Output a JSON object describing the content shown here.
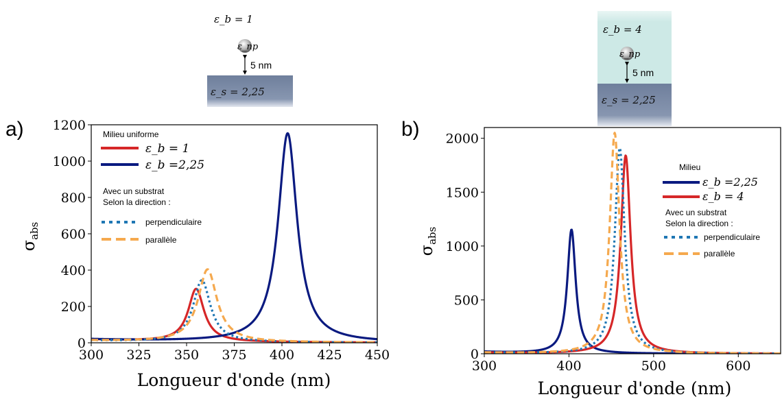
{
  "colors": {
    "red": "#d62728",
    "navy": "#0a1a80",
    "blue_dotted": "#1f77b4",
    "orange_dashed": "#f5a94e",
    "substrate": "#6f7f9c",
    "medium_b": "#cde9e6"
  },
  "chart_data": [
    {
      "panel_label": "a)",
      "type": "line",
      "xlabel": "Longueur d'onde (nm)",
      "ylabel": "σ",
      "ylabel_sub": "abs",
      "xlim": [
        300,
        450
      ],
      "ylim": [
        0,
        1200
      ],
      "xticks": [
        "300",
        "325",
        "350",
        "375",
        "400",
        "425",
        "450"
      ],
      "yticks": [
        "0",
        "200",
        "400",
        "600",
        "800",
        "1000",
        "1200"
      ],
      "legend": {
        "heading1": "Milieu uniforme",
        "entries": [
          "ε_b = 1",
          "ε_b =2,25"
        ],
        "heading2": "Avec un substrat",
        "heading3": "Selon la direction :",
        "entries2": [
          "perpendiculaire",
          "parallèle"
        ]
      },
      "series": [
        {
          "style": "red-solid",
          "lorentz": {
            "peak": 355,
            "amp": 290,
            "width": 5
          },
          "base": 18
        },
        {
          "style": "navy-solid",
          "lorentz": {
            "peak": 403,
            "amp": 1150,
            "width": 6
          },
          "base": 18
        },
        {
          "style": "blue-dotted",
          "lorentz": {
            "peak": 358,
            "amp": 340,
            "width": 5.5
          },
          "base": 12
        },
        {
          "style": "orange-dashed",
          "lorentz": {
            "peak": 361,
            "amp": 400,
            "width": 6
          },
          "base": 12
        }
      ],
      "schematic": {
        "eps_b": "ε_b = 1",
        "eps_np": "ε_np",
        "distance": "5 nm",
        "eps_s": "ε_s = 2,25"
      }
    },
    {
      "panel_label": "b)",
      "type": "line",
      "xlabel": "Longueur d'onde (nm)",
      "ylabel": "σ",
      "ylabel_sub": "abs",
      "xlim": [
        300,
        650
      ],
      "ylim": [
        0,
        2100
      ],
      "xticks": [
        "300",
        "400",
        "500",
        "600"
      ],
      "yticks": [
        "0",
        "500",
        "1000",
        "1500",
        "2000"
      ],
      "legend": {
        "heading1": "Milieu",
        "entries": [
          "ε_b =2,25",
          "ε_b = 4"
        ],
        "heading2": "Avec un substrat",
        "heading3": "Selon la direction :",
        "entries2": [
          "perpendiculaire",
          "parallèle"
        ]
      },
      "series": [
        {
          "style": "navy-solid",
          "lorentz": {
            "peak": 403,
            "amp": 1150,
            "width": 6
          },
          "base": 18
        },
        {
          "style": "red-solid",
          "lorentz": {
            "peak": 467,
            "amp": 1840,
            "width": 7
          },
          "base": 10
        },
        {
          "style": "blue-dotted",
          "lorentz": {
            "peak": 460,
            "amp": 1910,
            "width": 7
          },
          "base": 10
        },
        {
          "style": "orange-dashed",
          "lorentz": {
            "peak": 454,
            "amp": 2050,
            "width": 7
          },
          "base": 10
        }
      ],
      "schematic": {
        "eps_b": "ε_b = 4",
        "eps_np": "ε_np",
        "distance": "5 nm",
        "eps_s": "ε_s = 2,25"
      }
    }
  ]
}
